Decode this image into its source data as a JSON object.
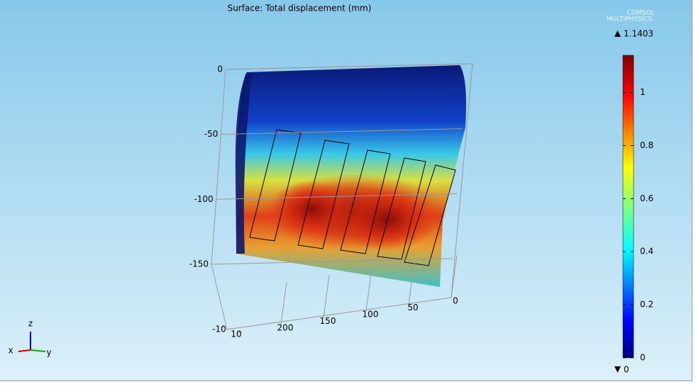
{
  "chart_data": {
    "type": "surface3d",
    "title": "Surface: Total displacement (mm)",
    "logo": [
      "COMSOL",
      "MULTIPHYSICS"
    ],
    "colorbar": {
      "min": 0,
      "max": 1.1403,
      "ticks": [
        0,
        0.2,
        0.4,
        0.6,
        0.8,
        1
      ]
    },
    "zticks": [
      0,
      -50,
      -100,
      -150
    ],
    "yticks": [
      200,
      150,
      100,
      50,
      0
    ],
    "xticks": [
      -10,
      10
    ],
    "triad": [
      "x",
      "y",
      "z"
    ]
  }
}
